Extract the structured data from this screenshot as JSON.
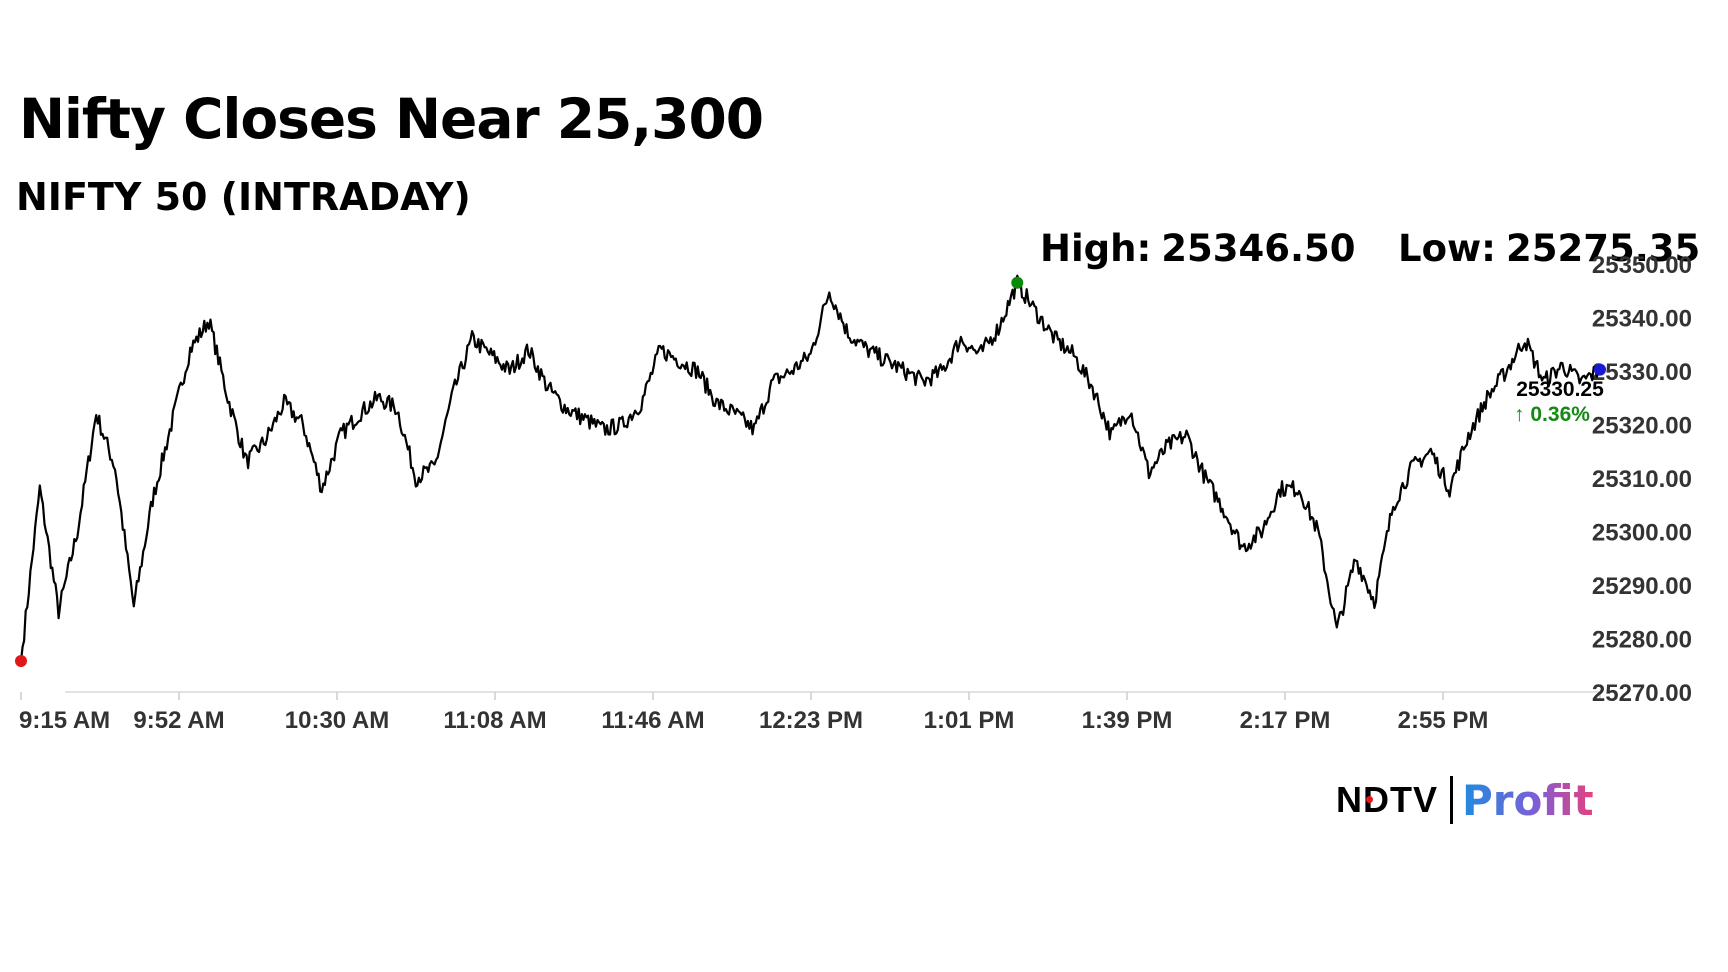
{
  "header": {
    "title": "Nifty Closes Near 25,300",
    "subtitle": "NIFTY 50 (INTRADAY)"
  },
  "stats": {
    "high_label": "High:",
    "high_value": "25346.50",
    "low_label": "Low:",
    "low_value": "25275.35"
  },
  "last": {
    "value": "25330.25",
    "change": "↑ 0.36%",
    "change_color": "#138a13"
  },
  "brand": {
    "ndtv": "NDTV",
    "profit": "Profit"
  },
  "chart_data": {
    "type": "line",
    "series": [
      {
        "color": "#000000",
        "x": [
          "9:15 AM",
          "9:18 AM",
          "9:21 AM",
          "9:24 AM",
          "9:27 AM",
          "9:30 AM",
          "9:33 AM",
          "9:36 AM",
          "9:40 AM",
          "9:43 AM",
          "9:47 AM",
          "9:52 AM",
          "9:56 AM",
          "10:00 AM",
          "10:05 AM",
          "10:10 AM",
          "10:15 AM",
          "10:20 AM",
          "10:25 AM",
          "10:30 AM",
          "10:35 AM",
          "10:40 AM",
          "10:45 AM",
          "10:50 AM",
          "10:55 AM",
          "11:00 AM",
          "11:04 AM",
          "11:08 AM",
          "11:13 AM",
          "11:18 AM",
          "11:23 AM",
          "11:28 AM",
          "11:33 AM",
          "11:38 AM",
          "11:42 AM",
          "11:46 AM",
          "11:50 AM",
          "11:55 AM",
          "12:00 PM",
          "12:05 PM",
          "12:10 PM",
          "12:15 PM",
          "12:19 PM",
          "12:23 PM",
          "12:28 PM",
          "12:33 PM",
          "12:38 PM",
          "12:43 PM",
          "12:48 PM",
          "12:53 PM",
          "12:57 PM",
          "1:01 PM",
          "1:06 PM",
          "1:08 PM",
          "1:11 PM",
          "1:16 PM",
          "1:21 PM",
          "1:26 PM",
          "1:31 PM",
          "1:35 PM",
          "1:39 PM",
          "1:44 PM",
          "1:49 PM",
          "1:54 PM",
          "1:59 PM",
          "2:04 PM",
          "2:09 PM",
          "2:13 PM",
          "2:15 PM",
          "2:17 PM",
          "2:22 PM",
          "2:27 PM",
          "2:32 PM",
          "2:37 PM",
          "2:42 PM",
          "2:47 PM",
          "2:51 PM",
          "2:55 PM",
          "3:00 PM",
          "3:05 PM",
          "3:10 PM",
          "3:15 PM",
          "3:20 PM",
          "3:25 PM",
          "3:30 PM"
        ],
        "values": [
          25275.8,
          25308.0,
          25285.0,
          25300.0,
          25322.0,
          25312.0,
          25286.0,
          25306.0,
          25320.0,
          25334.0,
          25339.5,
          25325.0,
          25313.0,
          25317.0,
          25324.0,
          25320.0,
          25308.0,
          25318.0,
          25322.0,
          25325.0,
          25323.0,
          25310.0,
          25312.0,
          25326.0,
          25336.0,
          25333.0,
          25330.0,
          25334.0,
          25327.0,
          25323.0,
          25321.0,
          25319.0,
          25320.0,
          25324.0,
          25334.0,
          25332.0,
          25330.0,
          25324.0,
          25322.0,
          25319.0,
          25328.0,
          25330.0,
          25333.0,
          25345.0,
          25337.0,
          25334.0,
          25332.0,
          25330.0,
          25328.0,
          25330.0,
          25336.0,
          25333.0,
          25338.0,
          25346.5,
          25341.0,
          25336.0,
          25333.0,
          25327.0,
          25318.0,
          25323.0,
          25311.0,
          25316.0,
          25318.0,
          25310.0,
          25304.0,
          25297.0,
          25300.0,
          25308.0,
          25308.0,
          25300.0,
          25281.5,
          25295.0,
          25287.0,
          25305.0,
          25312.0,
          25315.0,
          25308.0,
          25318.0,
          25325.0,
          25330.0,
          25336.0,
          25328.0,
          25331.0,
          25328.0,
          25330.25
        ]
      }
    ],
    "x_tick_labels": [
      "9:15 AM",
      "9:52 AM",
      "10:30 AM",
      "11:08 AM",
      "11:46 AM",
      "12:23 PM",
      "1:01 PM",
      "1:39 PM",
      "2:17 PM",
      "2:55 PM"
    ],
    "y_tick_labels": [
      "25270.00",
      "25280.00",
      "25290.00",
      "25300.00",
      "25310.00",
      "25320.00",
      "25330.00",
      "25340.00",
      "25350.00"
    ],
    "ylim": [
      25270,
      25350
    ],
    "y_axis_side": "right",
    "grid": false,
    "markers": {
      "open": {
        "index": 0,
        "color": "#e01818"
      },
      "high": {
        "index": 53,
        "color": "#0a8a0a"
      },
      "close": {
        "index": 84,
        "color": "#1a1ad6"
      }
    }
  }
}
